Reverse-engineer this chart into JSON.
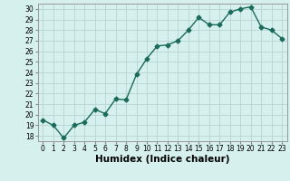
{
  "x": [
    0,
    1,
    2,
    3,
    4,
    5,
    6,
    7,
    8,
    9,
    10,
    11,
    12,
    13,
    14,
    15,
    16,
    17,
    18,
    19,
    20,
    21,
    22,
    23
  ],
  "y": [
    19.5,
    19.0,
    17.8,
    19.0,
    19.3,
    20.5,
    20.1,
    21.5,
    21.4,
    23.8,
    25.3,
    26.5,
    26.6,
    27.0,
    28.0,
    29.2,
    28.5,
    28.5,
    29.7,
    30.0,
    30.2,
    28.3,
    28.0,
    27.2
  ],
  "line_color": "#1a6b5a",
  "marker": "D",
  "marker_size": 2.5,
  "bg_color": "#d6f0ee",
  "grid_color": "#b8d4d0",
  "xlabel": "Humidex (Indice chaleur)",
  "ylim": [
    17.5,
    30.5
  ],
  "xlim": [
    -0.5,
    23.5
  ],
  "yticks": [
    18,
    19,
    20,
    21,
    22,
    23,
    24,
    25,
    26,
    27,
    28,
    29,
    30
  ],
  "xticks": [
    0,
    1,
    2,
    3,
    4,
    5,
    6,
    7,
    8,
    9,
    10,
    11,
    12,
    13,
    14,
    15,
    16,
    17,
    18,
    19,
    20,
    21,
    22,
    23
  ],
  "tick_label_fontsize": 5.5,
  "xlabel_fontsize": 7.5,
  "line_width": 1.0
}
